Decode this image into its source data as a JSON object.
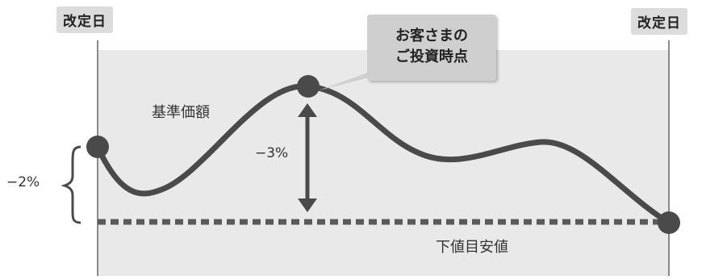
{
  "labels": {
    "revision_left": "改定日",
    "revision_right": "改定日",
    "callout_line1": "お客さまの",
    "callout_line2": "ご投資時点",
    "base_price": "基準価額",
    "drop_3": "−3%",
    "drop_2": "−2%",
    "lower_target": "下値目安値"
  },
  "colors": {
    "area_fill": "#e9e9e9",
    "curve": "#4a4a4a",
    "dot": "#4a4a4a",
    "dashed_line": "#5a5a5a",
    "tag_bg": "#dcdcdc",
    "callout_bg": "#cfcfcf"
  }
}
